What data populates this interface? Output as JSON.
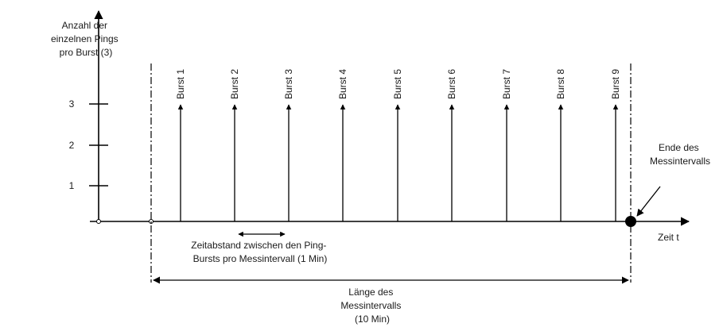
{
  "y_axis": {
    "label_lines": [
      "Anzahl der",
      "einzelnen Pings",
      "pro Burst (3)"
    ],
    "ticks": [
      "1",
      "2",
      "3"
    ]
  },
  "x_axis": {
    "label": "Zeit t"
  },
  "bursts": [
    "Burst 1",
    "Burst 2",
    "Burst 3",
    "Burst 4",
    "Burst 5",
    "Burst 6",
    "Burst 7",
    "Burst 8",
    "Burst 9"
  ],
  "annotations": {
    "end_label_lines": [
      "Ende des",
      "Messintervalls"
    ],
    "gap_label_lines": [
      "Zeitabstand zwischen den Ping-",
      "Bursts pro Messintervall (1 Min)"
    ],
    "length_label_lines": [
      "Länge des",
      "Messintervalls",
      "(10 Min)"
    ]
  }
}
